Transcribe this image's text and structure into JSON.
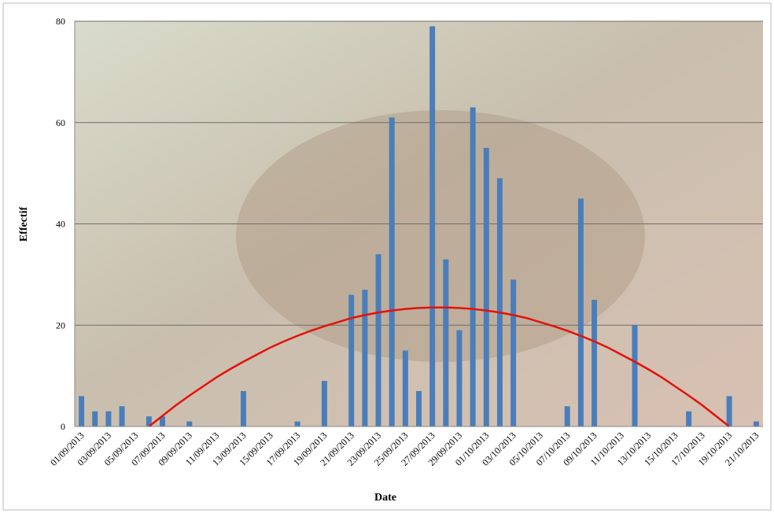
{
  "chart_data": {
    "type": "bar",
    "x_label": "Date",
    "y_label": "Effectif",
    "categories": [
      "01/09/2013",
      null,
      "03/09/2013",
      null,
      "05/09/2013",
      null,
      "07/09/2013",
      null,
      "09/09/2013",
      null,
      "11/09/2013",
      null,
      "13/09/2013",
      null,
      "15/09/2013",
      null,
      "17/09/2013",
      null,
      "19/09/2013",
      null,
      "21/09/2013",
      null,
      "23/09/2013",
      null,
      "25/09/2013",
      null,
      "27/09/2013",
      null,
      "29/09/2013",
      null,
      "01/10/2013",
      null,
      "03/10/2013",
      null,
      "05/10/2013",
      null,
      "07/10/2013",
      null,
      "09/10/2013",
      null,
      "11/10/2013",
      null,
      "13/10/2013",
      null,
      "15/10/2013",
      null,
      "17/10/2013",
      null,
      "19/10/2013",
      null,
      "21/10/2013"
    ],
    "series": [
      {
        "type": "bar",
        "color": "#4a7ebb",
        "values": [
          6,
          3,
          3,
          4,
          0,
          2,
          2,
          0,
          1,
          0,
          0,
          0,
          7,
          0,
          0,
          0,
          1,
          0,
          9,
          0,
          26,
          27,
          34,
          61,
          15,
          7,
          79,
          33,
          19,
          63,
          55,
          49,
          29,
          0,
          0,
          0,
          4,
          45,
          25,
          0,
          0,
          20,
          0,
          0,
          0,
          3,
          0,
          0,
          6,
          0,
          1
        ]
      },
      {
        "type": "line",
        "color": "#e3120b",
        "values": [
          null,
          null,
          null,
          null,
          null,
          0,
          2.1,
          4.2,
          6.1,
          7.9,
          9.7,
          11.3,
          12.8,
          14.2,
          15.6,
          16.8,
          17.9,
          18.9,
          19.8,
          20.6,
          21.4,
          22.0,
          22.5,
          22.9,
          23.2,
          23.4,
          23.5,
          23.5,
          23.4,
          23.2,
          22.9,
          22.5,
          22.0,
          21.4,
          20.6,
          19.8,
          18.9,
          17.9,
          16.8,
          15.6,
          14.2,
          12.8,
          11.3,
          9.7,
          7.9,
          6.1,
          4.2,
          2.1,
          0,
          null,
          null
        ]
      }
    ],
    "ylim": [
      0,
      80
    ],
    "yticks": [
      0,
      20,
      40,
      60,
      80
    ],
    "grid": true
  }
}
